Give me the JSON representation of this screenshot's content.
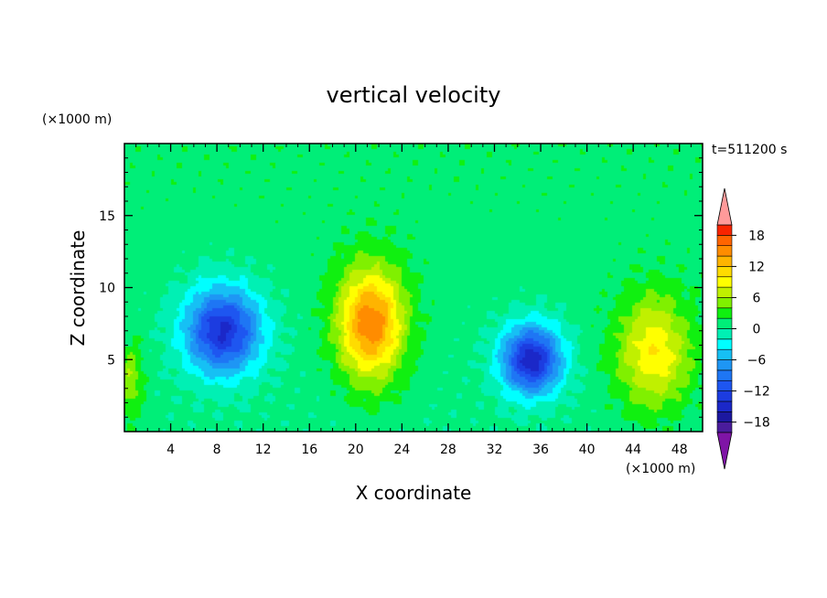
{
  "chart_data": {
    "type": "heatmap",
    "title": "vertical velocity",
    "xlabel": "X coordinate",
    "ylabel": "Z coordinate",
    "x_units": "(×1000 m)",
    "y_units": "(×1000 m)",
    "time_label": "t=511200 s",
    "xlim": [
      0,
      50
    ],
    "ylim": [
      0,
      20
    ],
    "x_ticks": [
      4,
      8,
      12,
      16,
      20,
      24,
      28,
      32,
      36,
      40,
      44,
      48
    ],
    "y_ticks": [
      5,
      10,
      15
    ],
    "colorbar": {
      "min": -20,
      "max": 20,
      "interval": 2,
      "tick_values": [
        18,
        12,
        6,
        0,
        -6,
        -12,
        -18
      ],
      "colors": [
        "#7f14a6",
        "#4a1c9c",
        "#1c18a0",
        "#1b28c8",
        "#1c3ce0",
        "#1e56f0",
        "#1e76f4",
        "#1e96f4",
        "#16c0f4",
        "#00ffff",
        "#00f0b4",
        "#00ee78",
        "#10f010",
        "#80f000",
        "#c0f000",
        "#ffff00",
        "#ffdc00",
        "#ffb400",
        "#ff8c00",
        "#ff6400",
        "#f82400",
        "#ff9a9a"
      ]
    },
    "features": [
      {
        "kind": "downdraft",
        "x": 8.5,
        "z": 7.0,
        "peak": -15,
        "sx": 3.3,
        "sz": 3.0
      },
      {
        "kind": "downdraft",
        "x": 35.2,
        "z": 5.0,
        "peak": -16,
        "sx": 2.6,
        "sz": 2.4
      },
      {
        "kind": "updraft",
        "x": 21.3,
        "z": 7.5,
        "peak": 15,
        "sx": 2.8,
        "sz": 3.8
      },
      {
        "kind": "updraft",
        "x": 45.8,
        "z": 5.5,
        "peak": 9,
        "sx": 3.2,
        "sz": 3.8
      },
      {
        "kind": "updraft",
        "x": 0.4,
        "z": 3.5,
        "peak": 5,
        "sx": 1.2,
        "sz": 2.5
      }
    ]
  }
}
